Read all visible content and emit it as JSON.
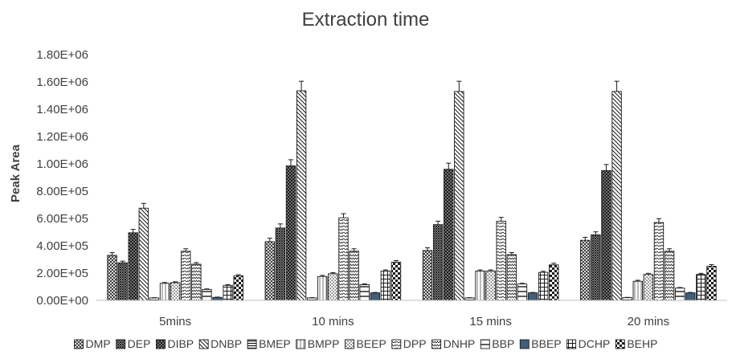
{
  "chart_data": {
    "type": "bar",
    "title": "Extraction time",
    "xlabel": "",
    "ylabel": "Peak Area",
    "ylim": [
      0,
      1800000
    ],
    "yticks": [
      0,
      200000,
      400000,
      600000,
      800000,
      1000000,
      1200000,
      1400000,
      1600000,
      1800000
    ],
    "ytick_labels": [
      "0.00E+00",
      "2.00E+05",
      "4.00E+05",
      "6.00E+05",
      "8.00E+05",
      "1.00E+06",
      "1.20E+06",
      "1.40E+06",
      "1.60E+06",
      "1.80E+06"
    ],
    "grid": false,
    "legend_position": "bottom",
    "categories": [
      "5mins",
      "10 mins",
      "15 mins",
      "20 mins"
    ],
    "series": [
      {
        "name": "DMP",
        "pattern": "crosshatch",
        "values": [
          330000,
          430000,
          365000,
          440000
        ],
        "errors": [
          20000,
          25000,
          20000,
          22000
        ]
      },
      {
        "name": "DEP",
        "pattern": "diagcross",
        "values": [
          275000,
          530000,
          555000,
          480000
        ],
        "errors": [
          12000,
          30000,
          25000,
          22000
        ]
      },
      {
        "name": "DIBP",
        "pattern": "darkdots",
        "values": [
          495000,
          985000,
          960000,
          950000
        ],
        "errors": [
          25000,
          45000,
          45000,
          45000
        ]
      },
      {
        "name": "DNBP",
        "pattern": "diagonal",
        "values": [
          675000,
          1535000,
          1530000,
          1530000
        ],
        "errors": [
          35000,
          70000,
          75000,
          75000
        ]
      },
      {
        "name": "BMEP",
        "pattern": "hstripes",
        "values": [
          18000,
          18000,
          18000,
          20000
        ],
        "errors": [
          2000,
          2000,
          2000,
          2000
        ]
      },
      {
        "name": "BMPP",
        "pattern": "vstripes",
        "values": [
          125000,
          175000,
          215000,
          140000
        ],
        "errors": [
          6000,
          8000,
          8000,
          7000
        ]
      },
      {
        "name": "BEEP",
        "pattern": "lightdots",
        "values": [
          130000,
          195000,
          215000,
          190000
        ],
        "errors": [
          6000,
          8000,
          8000,
          8000
        ]
      },
      {
        "name": "DPP",
        "pattern": "wave",
        "values": [
          360000,
          605000,
          580000,
          570000
        ],
        "errors": [
          18000,
          30000,
          28000,
          28000
        ]
      },
      {
        "name": "DNHP",
        "pattern": "zigzag",
        "values": [
          265000,
          360000,
          335000,
          360000
        ],
        "errors": [
          12000,
          18000,
          15000,
          18000
        ]
      },
      {
        "name": "BBP",
        "pattern": "hbar",
        "values": [
          80000,
          115000,
          120000,
          90000
        ],
        "errors": [
          4000,
          6000,
          5000,
          4000
        ]
      },
      {
        "name": "BBEP",
        "pattern": "solid",
        "values": [
          22000,
          55000,
          55000,
          55000
        ],
        "errors": [
          2000,
          3000,
          3000,
          3000
        ]
      },
      {
        "name": "DCHP",
        "pattern": "grid",
        "values": [
          110000,
          215000,
          205000,
          190000
        ],
        "errors": [
          5000,
          8000,
          8000,
          8000
        ]
      },
      {
        "name": "BEHP",
        "pattern": "checker",
        "values": [
          180000,
          280000,
          260000,
          250000
        ],
        "errors": [
          8000,
          12000,
          12000,
          12000
        ]
      }
    ],
    "colors": {
      "ink": "#1a1a1a",
      "axis": "#bfbfbf",
      "solid": "#3f5f7a",
      "text": "#404040"
    }
  }
}
